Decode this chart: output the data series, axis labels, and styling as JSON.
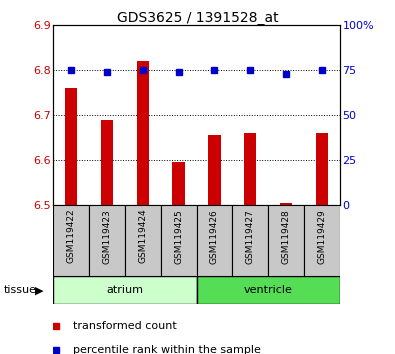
{
  "title": "GDS3625 / 1391528_at",
  "samples": [
    "GSM119422",
    "GSM119423",
    "GSM119424",
    "GSM119425",
    "GSM119426",
    "GSM119427",
    "GSM119428",
    "GSM119429"
  ],
  "transformed_counts": [
    6.76,
    6.69,
    6.82,
    6.595,
    6.655,
    6.66,
    6.505,
    6.66
  ],
  "percentile_ranks": [
    75,
    74,
    75,
    74,
    75,
    75,
    73,
    75
  ],
  "bar_base": 6.5,
  "ylim_left": [
    6.5,
    6.9
  ],
  "ylim_right": [
    0,
    100
  ],
  "yticks_left": [
    6.5,
    6.6,
    6.7,
    6.8,
    6.9
  ],
  "ytick_labels_left": [
    "6.5",
    "6.6",
    "6.7",
    "6.8",
    "6.9"
  ],
  "yticks_right": [
    0,
    25,
    50,
    75,
    100
  ],
  "ytick_labels_right": [
    "0",
    "25",
    "50",
    "75",
    "100%"
  ],
  "bar_color": "#cc0000",
  "marker_color": "#0000cc",
  "tissue_groups": [
    {
      "label": "atrium",
      "start": 0,
      "end": 4,
      "color": "#ccffcc"
    },
    {
      "label": "ventricle",
      "start": 4,
      "end": 8,
      "color": "#55dd55"
    }
  ],
  "tissue_label": "tissue",
  "legend_bar_label": "transformed count",
  "legend_dot_label": "percentile rank within the sample",
  "grid_color": "#000000",
  "tick_label_color_left": "#cc0000",
  "tick_label_color_right": "#0000cc",
  "sample_box_color": "#c8c8c8",
  "plot_bg_color": "#ffffff"
}
